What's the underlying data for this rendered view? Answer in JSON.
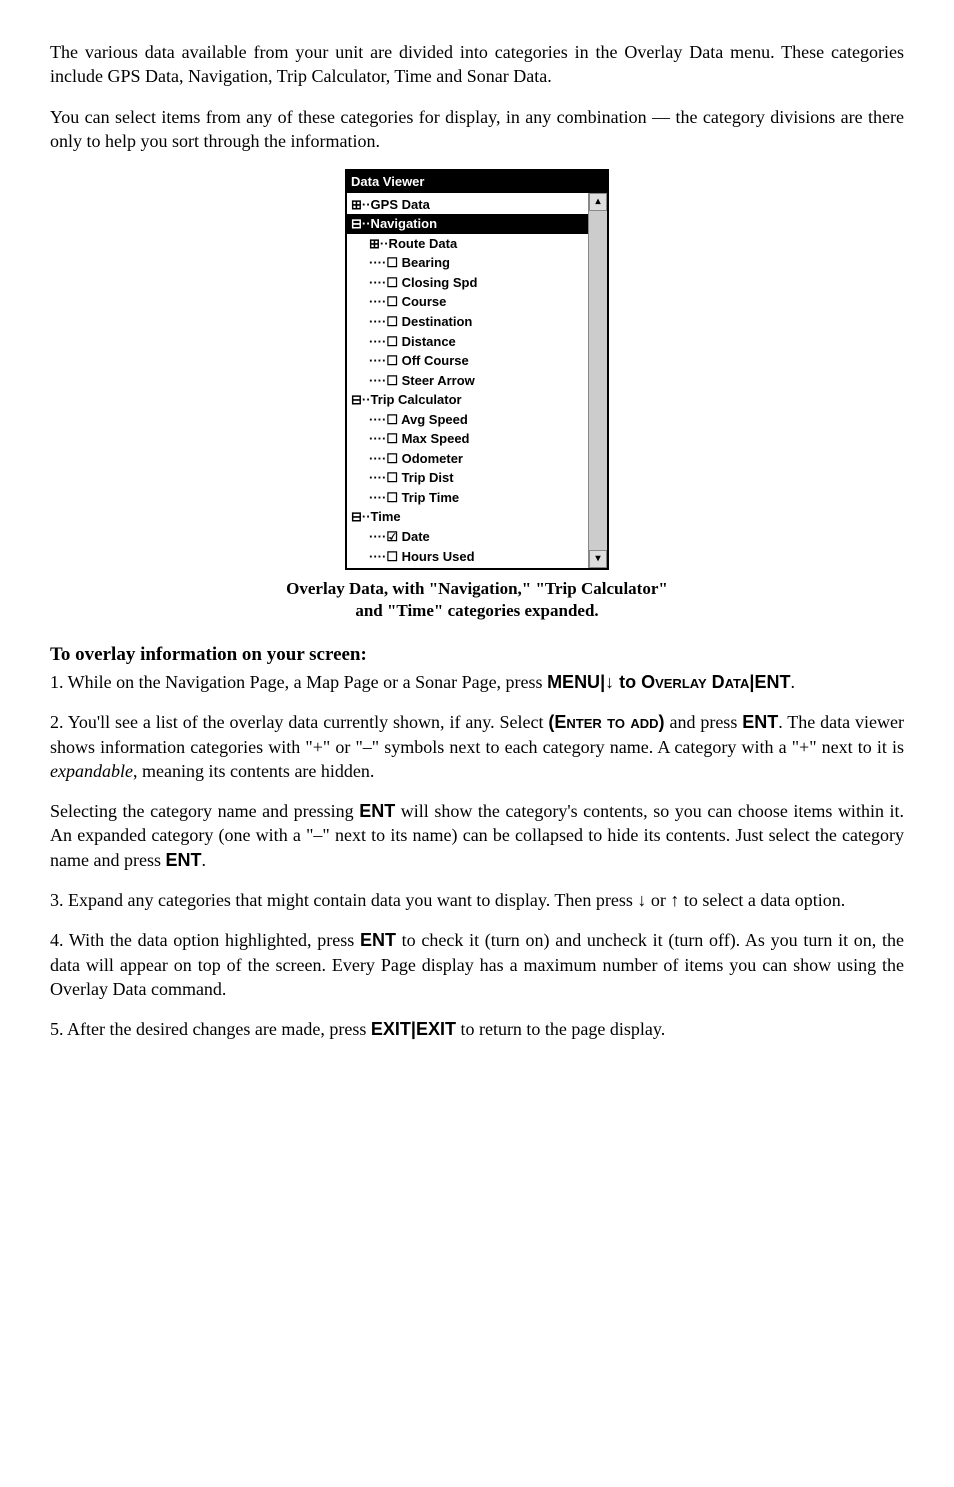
{
  "intro": {
    "p1": "The various data available from your unit are divided into categories in the Overlay Data menu. These categories include GPS Data, Navigation, Trip Calculator, Time and Sonar Data.",
    "p2": "You can select items from any of these categories for display, in any combination — the category divisions are there only to help you sort through the information."
  },
  "dataViewer": {
    "title": "Data Viewer",
    "rows": [
      {
        "text": "⊞··GPS Data",
        "indent": 0,
        "hl": false
      },
      {
        "text": "⊟··Navigation",
        "indent": 0,
        "hl": true
      },
      {
        "text": "⊞··Route Data",
        "indent": 1,
        "hl": false
      },
      {
        "text": "····☐ Bearing",
        "indent": 1,
        "hl": false
      },
      {
        "text": "····☐ Closing Spd",
        "indent": 1,
        "hl": false
      },
      {
        "text": "····☐ Course",
        "indent": 1,
        "hl": false
      },
      {
        "text": "····☐ Destination",
        "indent": 1,
        "hl": false
      },
      {
        "text": "····☐ Distance",
        "indent": 1,
        "hl": false
      },
      {
        "text": "····☐ Off Course",
        "indent": 1,
        "hl": false
      },
      {
        "text": "····☐ Steer Arrow",
        "indent": 1,
        "hl": false
      },
      {
        "text": "⊟··Trip Calculator",
        "indent": 0,
        "hl": false
      },
      {
        "text": "····☐ Avg Speed",
        "indent": 1,
        "hl": false
      },
      {
        "text": "····☐ Max Speed",
        "indent": 1,
        "hl": false
      },
      {
        "text": "····☐ Odometer",
        "indent": 1,
        "hl": false
      },
      {
        "text": "····☐ Trip Dist",
        "indent": 1,
        "hl": false
      },
      {
        "text": "····☐ Trip Time",
        "indent": 1,
        "hl": false
      },
      {
        "text": "⊟··Time",
        "indent": 0,
        "hl": false
      },
      {
        "text": "····☑ Date",
        "indent": 1,
        "hl": false
      },
      {
        "text": "····☐ Hours Used",
        "indent": 1,
        "hl": false
      }
    ],
    "scroll": {
      "up": "▴",
      "down": "▾"
    }
  },
  "caption": {
    "l1": "Overlay Data, with \"Navigation,\" \"Trip Calculator\"",
    "l2": "and \"Time\" categories expanded."
  },
  "sectionHead": "To overlay information on your screen:",
  "step1": {
    "pre": "1. While on the Navigation Page, a Map Page or a Sonar Page, press ",
    "menu": "MENU",
    "sep1": "|↓ to ",
    "overlay": "Overlay Data",
    "sep2": "|",
    "ent": "ENT",
    "post": "."
  },
  "step2": {
    "pre": "2. You'll see a list of the overlay data currently shown, if any. Select ",
    "enter": "(Enter to add)",
    "mid1": " and press ",
    "ent": "ENT",
    "mid2": ". The data viewer shows information categories with \"+\" or \"–\" symbols next to each category name. A category with a \"+\" next to it is ",
    "exp": "expandable",
    "post": ", meaning its contents are hidden."
  },
  "step2b": {
    "pre": "Selecting the category name and pressing ",
    "ent": "ENT",
    "mid": " will show the category's contents, so you can choose items within it. An expanded category (one with a \"–\" next to its name) can be collapsed to hide its contents. Just select the category name and press ",
    "ent2": "ENT",
    "post": "."
  },
  "step3": "3. Expand any categories that might contain data you want to display. Then press ↓ or ↑ to select a data option.",
  "step4": {
    "pre": "4. With the data option highlighted, press ",
    "ent": "ENT",
    "post": " to check it (turn on) and uncheck it (turn off). As you turn it on, the data will appear on top of the screen. Every Page display has a maximum number of items you can show using the Overlay Data command."
  },
  "step5": {
    "pre": "5. After the desired changes are made, press ",
    "exit1": "EXIT",
    "sep": "|",
    "exit2": "EXIT",
    "post": " to return to the page display."
  }
}
